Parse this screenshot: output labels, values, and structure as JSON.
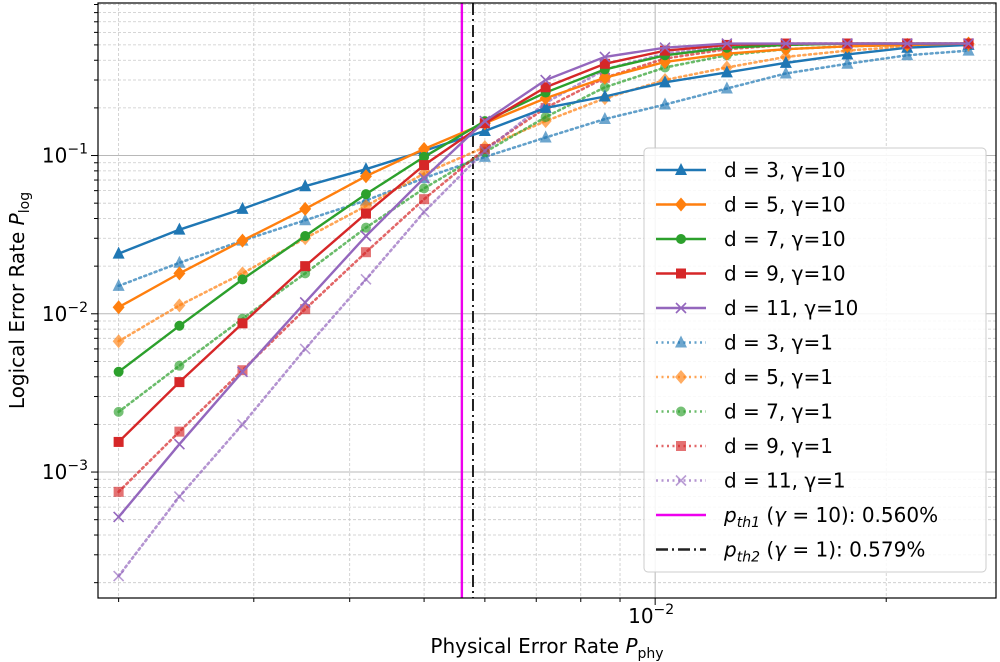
{
  "chart_data": {
    "type": "line",
    "xlabel": "Physical Error Rate",
    "xlabel_symbol": "P",
    "xlabel_sub": "phy",
    "ylabel": "Logical Error Rate",
    "ylabel_symbol": "P",
    "ylabel_sub": "log",
    "xscale": "log",
    "yscale": "log",
    "xlim": [
      0.00188,
      0.0278
    ],
    "ylim": [
      0.00016,
      0.92
    ],
    "grid": true,
    "legend_position": "lower-right",
    "x_ticks": [
      {
        "value": 0.01,
        "base": "10",
        "exp": "−2"
      }
    ],
    "y_ticks": [
      {
        "value": 0.001,
        "base": "10",
        "exp": "−3"
      },
      {
        "value": 0.01,
        "base": "10",
        "exp": "−2"
      },
      {
        "value": 0.1,
        "base": "10",
        "exp": "−1"
      }
    ],
    "x": [
      0.002,
      0.0024,
      0.0029,
      0.0035,
      0.0042,
      0.005,
      0.006,
      0.0072,
      0.0086,
      0.0103,
      0.0124,
      0.0148,
      0.0178,
      0.0213,
      0.0256
    ],
    "series": [
      {
        "name": "d = 3, γ=10",
        "color": "#1f77b4",
        "marker": "triangle",
        "style": "solid",
        "values": [
          0.024,
          0.034,
          0.046,
          0.064,
          0.082,
          0.107,
          0.143,
          0.2,
          0.236,
          0.29,
          0.335,
          0.385,
          0.435,
          0.48,
          0.5
        ]
      },
      {
        "name": "d = 5, γ=10",
        "color": "#ff7f0e",
        "marker": "diamond",
        "style": "solid",
        "values": [
          0.011,
          0.018,
          0.029,
          0.046,
          0.074,
          0.11,
          0.16,
          0.23,
          0.31,
          0.39,
          0.44,
          0.47,
          0.49,
          0.5,
          0.51
        ]
      },
      {
        "name": "d = 7, γ=10",
        "color": "#2ca02c",
        "marker": "circle",
        "style": "solid",
        "values": [
          0.0043,
          0.0084,
          0.0165,
          0.031,
          0.057,
          0.098,
          0.165,
          0.25,
          0.35,
          0.43,
          0.48,
          0.5,
          0.51,
          0.51,
          0.51
        ]
      },
      {
        "name": "d = 9, γ=10",
        "color": "#d62728",
        "marker": "square",
        "style": "solid",
        "values": [
          0.00155,
          0.0037,
          0.0087,
          0.02,
          0.043,
          0.087,
          0.16,
          0.27,
          0.38,
          0.46,
          0.5,
          0.51,
          0.51,
          0.51,
          0.51
        ]
      },
      {
        "name": "d = 11, γ=10",
        "color": "#9467bd",
        "marker": "x",
        "style": "solid",
        "values": [
          0.00052,
          0.0015,
          0.0043,
          0.0118,
          0.031,
          0.072,
          0.165,
          0.3,
          0.42,
          0.48,
          0.51,
          0.51,
          0.51,
          0.51,
          0.51
        ]
      },
      {
        "name": "d = 3, γ=1",
        "color": "#1f77b4",
        "marker": "triangle",
        "style": "dotted",
        "values": [
          0.015,
          0.021,
          0.029,
          0.039,
          0.052,
          0.072,
          0.098,
          0.13,
          0.17,
          0.21,
          0.265,
          0.33,
          0.38,
          0.43,
          0.46
        ]
      },
      {
        "name": "d = 5, γ=1",
        "color": "#ff7f0e",
        "marker": "diamond",
        "style": "dotted",
        "values": [
          0.0067,
          0.0113,
          0.018,
          0.03,
          0.048,
          0.077,
          0.113,
          0.165,
          0.23,
          0.3,
          0.36,
          0.42,
          0.46,
          0.49,
          0.5
        ]
      },
      {
        "name": "d = 7, γ=1",
        "color": "#2ca02c",
        "marker": "circle",
        "style": "dotted",
        "values": [
          0.0024,
          0.0047,
          0.0093,
          0.018,
          0.035,
          0.062,
          0.105,
          0.175,
          0.27,
          0.36,
          0.43,
          0.47,
          0.49,
          0.5,
          0.51
        ]
      },
      {
        "name": "d = 9, γ=1",
        "color": "#d62728",
        "marker": "square",
        "style": "dotted",
        "values": [
          0.00075,
          0.0018,
          0.0044,
          0.0107,
          0.0245,
          0.053,
          0.11,
          0.2,
          0.31,
          0.41,
          0.47,
          0.5,
          0.51,
          0.51,
          0.51
        ]
      },
      {
        "name": "d = 11, γ=1",
        "color": "#9467bd",
        "marker": "x",
        "style": "dotted",
        "values": [
          0.00022,
          0.0007,
          0.002,
          0.006,
          0.0165,
          0.044,
          0.107,
          0.215,
          0.35,
          0.44,
          0.49,
          0.51,
          0.51,
          0.51,
          0.51
        ]
      }
    ],
    "thresholds": [
      {
        "x": 0.0056,
        "color": "#ee00ee",
        "style": "solid",
        "sym": "p",
        "sub": "th1",
        "gamma": "10",
        "value": "0.560%"
      },
      {
        "x": 0.00579,
        "color": "#222222",
        "style": "dashdot",
        "sym": "p",
        "sub": "th2",
        "gamma": "1",
        "value": "0.579%"
      }
    ]
  }
}
